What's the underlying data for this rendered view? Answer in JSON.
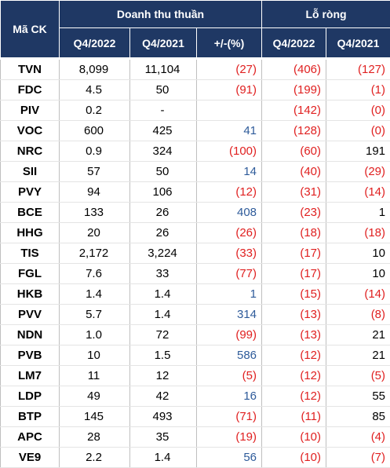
{
  "header": {
    "ticker": "Mã CK",
    "revenue": "Doanh thu thuần",
    "loss": "Lỗ ròng",
    "revenue_columns": [
      "Q4/2022",
      "Q4/2021",
      "+/-(%)"
    ],
    "loss_columns": [
      "Q4/2022",
      "Q4/2021"
    ]
  },
  "table": {
    "rows": [
      [
        "TVN",
        "8,099",
        "11,104",
        "(27)",
        "(406)",
        "(127)"
      ],
      [
        "FDC",
        "4.5",
        "50",
        "(91)",
        "(199)",
        "(1)"
      ],
      [
        "PIV",
        "0.2",
        "-",
        null,
        "(142)",
        "(0)"
      ],
      [
        "VOC",
        "600",
        "425",
        "41",
        "(128)",
        "(0)"
      ],
      [
        "NRC",
        "0.9",
        "324",
        "(100)",
        "(60)",
        "191"
      ],
      [
        "SII",
        "57",
        "50",
        "14",
        "(40)",
        "(29)"
      ],
      [
        "PVY",
        "94",
        "106",
        "(12)",
        "(31)",
        "(14)"
      ],
      [
        "BCE",
        "133",
        "26",
        "408",
        "(23)",
        "1"
      ],
      [
        "HHG",
        "20",
        "26",
        "(26)",
        "(18)",
        "(18)"
      ],
      [
        "TIS",
        "2,172",
        "3,224",
        "(33)",
        "(17)",
        "10"
      ],
      [
        "FGL",
        "7.6",
        "33",
        "(77)",
        "(17)",
        "10"
      ],
      [
        "HKB",
        "1.4",
        "1.4",
        "1",
        "(15)",
        "(14)"
      ],
      [
        "PVV",
        "5.7",
        "1.4",
        "314",
        "(13)",
        "(8)"
      ],
      [
        "NDN",
        "1.0",
        "72",
        "(99)",
        "(13)",
        "21"
      ],
      [
        "PVB",
        "10",
        "1.5",
        "586",
        "(12)",
        "21"
      ],
      [
        "LM7",
        "11",
        "12",
        "(5)",
        "(12)",
        "(5)"
      ],
      [
        "LDP",
        "49",
        "42",
        "16",
        "(12)",
        "55"
      ],
      [
        "BTP",
        "145",
        "493",
        "(71)",
        "(11)",
        "85"
      ],
      [
        "APC",
        "28",
        "35",
        "(19)",
        "(10)",
        "(4)"
      ],
      [
        "VE9",
        "2.2",
        "1.4",
        "56",
        "(10)",
        "(7)"
      ]
    ]
  }
}
